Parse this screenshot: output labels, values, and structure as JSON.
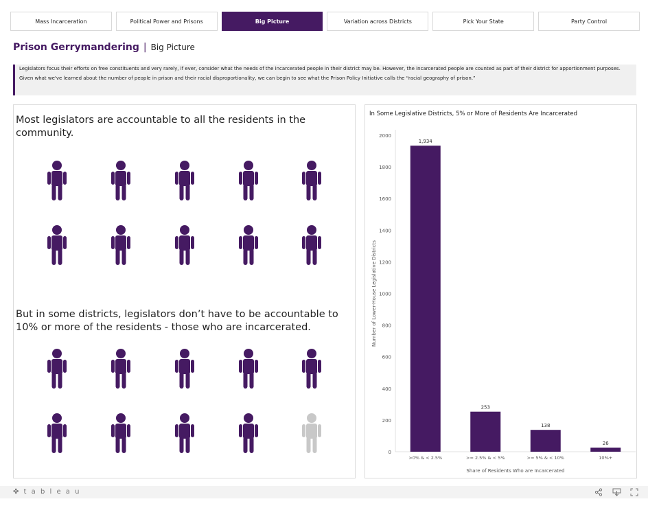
{
  "tabs": [
    {
      "label": "Mass Incarceration",
      "active": false
    },
    {
      "label": "Political Power and Prisons",
      "active": false
    },
    {
      "label": "Big Picture",
      "active": true
    },
    {
      "label": "Variation across Districts",
      "active": false
    },
    {
      "label": "Pick Your State",
      "active": false
    },
    {
      "label": "Party Control",
      "active": false
    }
  ],
  "header": {
    "title": "Prison Gerrymandering",
    "separator": "|",
    "subtitle": "Big Picture"
  },
  "intro": {
    "p1": "Legislators focus their efforts on free constituents and very rarely, if ever, consider what the needs of the incarcerated people in their district may be. However, the incarcerated people are counted as part of their district for apportionment purposes.",
    "p2": "Given what we've learned about the number of people in prison and their racial disproportionality, we can begin to see what the Prison Policy Initiative calls the “racial geography of prison.”"
  },
  "left": {
    "text1": "Most legislators are accountable to all the residents in the community.",
    "text2": "But in some districts, legislators don’t have to be accountable to 10% or more of the residents - those who are incarcerated.",
    "grid1_filled": 10,
    "grid2_filled": 9,
    "grid2_total": 10
  },
  "colors": {
    "accent": "#451a62",
    "muted": "#c8c8c8"
  },
  "chart_data": {
    "type": "bar",
    "title": "In Some Legislative Districts, 5% or More of Residents Are Incarcerated",
    "xlabel": "Share of Residents Who are Incarcerated",
    "ylabel": "Number of Lower-House Legislative Districts",
    "categories": [
      ">0% & < 2.5%",
      ">= 2.5% & < 5%",
      ">= 5% & < 10%",
      "10%+"
    ],
    "values": [
      1934,
      253,
      138,
      26
    ],
    "data_labels": [
      "1,934",
      "253",
      "138",
      "26"
    ],
    "ylim": [
      0,
      2000
    ],
    "yticks": [
      0,
      200,
      400,
      600,
      800,
      1000,
      1200,
      1400,
      1600,
      1800,
      2000
    ],
    "grid": false,
    "color": "#451a62"
  },
  "footer": {
    "logo": "✤ t a b l e a u",
    "share_icon": "share-icon",
    "download_icon": "download-icon",
    "fullscreen_icon": "fullscreen-icon"
  }
}
